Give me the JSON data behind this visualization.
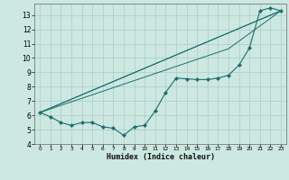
{
  "xlabel": "Humidex (Indice chaleur)",
  "bg_color": "#cce8e0",
  "grid_color": "#aacccc",
  "line_color": "#1a6e6e",
  "xlim": [
    -0.5,
    23.5
  ],
  "ylim": [
    4,
    13.8
  ],
  "yticks": [
    4,
    5,
    6,
    7,
    8,
    9,
    10,
    11,
    12,
    13
  ],
  "xticks": [
    0,
    1,
    2,
    3,
    4,
    5,
    6,
    7,
    8,
    9,
    10,
    11,
    12,
    13,
    14,
    15,
    16,
    17,
    18,
    19,
    20,
    21,
    22,
    23
  ],
  "series_with_markers": {
    "x": [
      0,
      1,
      2,
      3,
      4,
      5,
      6,
      7,
      8,
      9,
      10,
      11,
      12,
      13,
      14,
      15,
      16,
      17,
      18,
      19,
      20,
      21,
      22,
      23
    ],
    "y": [
      6.2,
      5.9,
      5.5,
      5.3,
      5.5,
      5.5,
      5.2,
      5.1,
      4.6,
      5.2,
      5.3,
      6.3,
      7.6,
      8.6,
      8.55,
      8.5,
      8.5,
      8.6,
      8.8,
      9.5,
      10.7,
      13.3,
      13.5,
      13.3
    ]
  },
  "ref_lines": [
    {
      "x": [
        0,
        23
      ],
      "y": [
        6.2,
        13.3
      ]
    },
    {
      "x": [
        0,
        23
      ],
      "y": [
        6.2,
        13.3
      ]
    },
    {
      "x": [
        0,
        18,
        23
      ],
      "y": [
        6.2,
        10.65,
        13.3
      ]
    }
  ]
}
